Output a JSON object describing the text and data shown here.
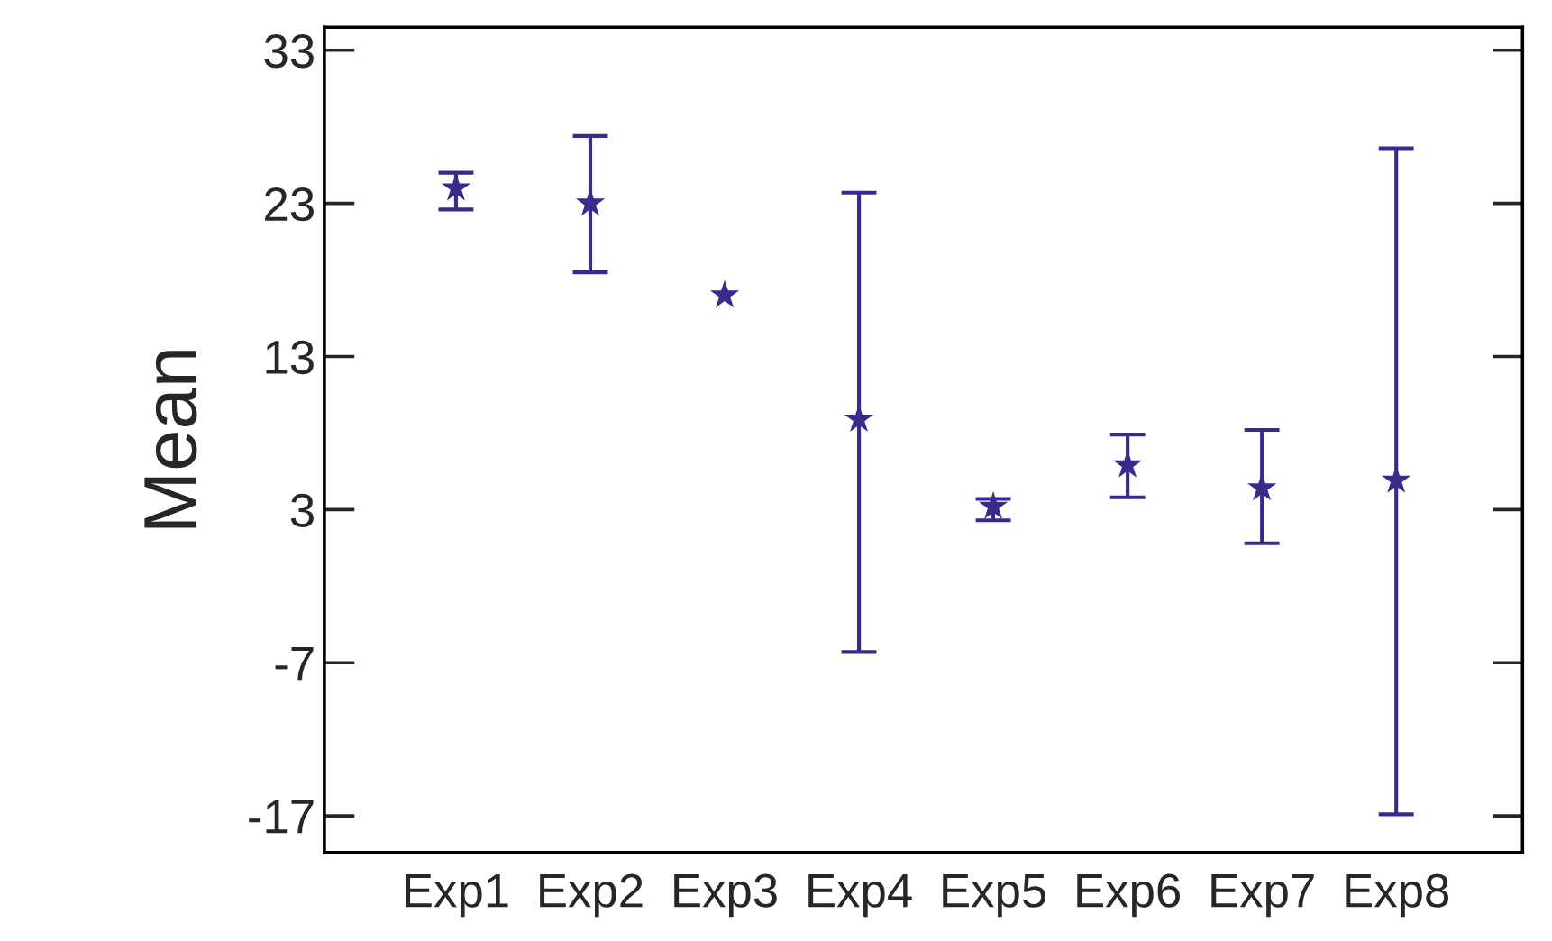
{
  "chart_data": {
    "type": "scatter",
    "ylabel": "Mean",
    "categories": [
      "Exp1",
      "Exp2",
      "Exp3",
      "Exp4",
      "Exp5",
      "Exp6",
      "Exp7",
      "Exp8"
    ],
    "series": [
      {
        "color": "#3b2a8c",
        "values": [
          24.0,
          23.0,
          17.0,
          8.9,
          3.2,
          5.9,
          4.4,
          4.9
        ],
        "errors": [
          [
            22.6,
            25.0
          ],
          [
            18.5,
            27.4
          ],
          null,
          [
            -6.3,
            23.7
          ],
          [
            2.3,
            3.7
          ],
          [
            3.8,
            7.9
          ],
          [
            0.8,
            8.2
          ],
          [
            -16.9,
            26.6
          ]
        ]
      }
    ],
    "marker": "star",
    "ylim": [
      -19.4,
      34.5
    ],
    "yticks": [
      -17,
      -7,
      3,
      13,
      23,
      33
    ],
    "grid": false,
    "legend": false
  }
}
